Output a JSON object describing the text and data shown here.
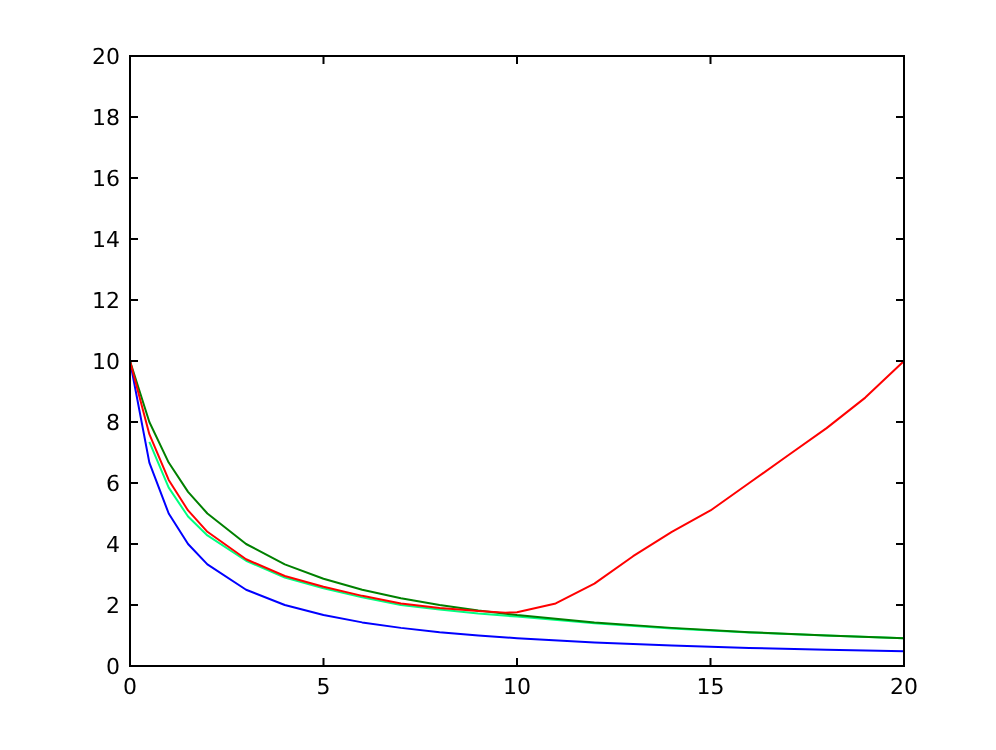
{
  "chart_data": {
    "type": "line",
    "xlim": [
      0,
      20
    ],
    "ylim": [
      0,
      20
    ],
    "xticks": [
      0,
      5,
      10,
      15,
      20
    ],
    "yticks": [
      0,
      2,
      4,
      6,
      8,
      10,
      12,
      14,
      16,
      18,
      20
    ],
    "grid": false,
    "marker": "none",
    "line_style": "solid",
    "series": [
      {
        "color": "#0000ff",
        "x": [
          0,
          0.5,
          1,
          1.5,
          2,
          3,
          4,
          5,
          6,
          7,
          8,
          9,
          10,
          12,
          14,
          16,
          18,
          20
        ],
        "values": [
          10,
          6.67,
          5,
          4,
          3.33,
          2.5,
          2,
          1.67,
          1.43,
          1.25,
          1.11,
          1,
          0.91,
          0.77,
          0.67,
          0.59,
          0.53,
          0.48
        ]
      },
      {
        "color": "#00ff80",
        "x": [
          0.5,
          1,
          1.5,
          2,
          3,
          4,
          5,
          6,
          7,
          8,
          9,
          10,
          12,
          14,
          16,
          18,
          20
        ],
        "values": [
          7.35,
          5.85,
          4.9,
          4.28,
          3.45,
          2.9,
          2.55,
          2.25,
          2,
          1.85,
          1.72,
          1.62,
          1.4,
          1.23,
          1.1,
          1,
          0.91
        ]
      },
      {
        "color": "#008000",
        "x": [
          0,
          0.5,
          1,
          1.5,
          2,
          3,
          4,
          5,
          6,
          7,
          8,
          9,
          10,
          12,
          14,
          16,
          18,
          20
        ],
        "values": [
          10,
          8,
          6.67,
          5.71,
          5,
          4,
          3.33,
          2.86,
          2.5,
          2.22,
          2,
          1.82,
          1.67,
          1.43,
          1.25,
          1.11,
          1,
          0.91
        ]
      },
      {
        "color": "#ff0000",
        "x": [
          0,
          0.5,
          1,
          1.5,
          2,
          3,
          4,
          5,
          6,
          7,
          8,
          9,
          9.7,
          10,
          11,
          12,
          13,
          14,
          15,
          16,
          17,
          18,
          19,
          20
        ],
        "values": [
          10,
          7.6,
          6.1,
          5.1,
          4.4,
          3.5,
          2.95,
          2.6,
          2.3,
          2.05,
          1.9,
          1.8,
          1.75,
          1.76,
          2.05,
          2.7,
          3.6,
          4.4,
          5.1,
          6,
          6.9,
          7.8,
          8.8,
          10
        ]
      }
    ]
  }
}
